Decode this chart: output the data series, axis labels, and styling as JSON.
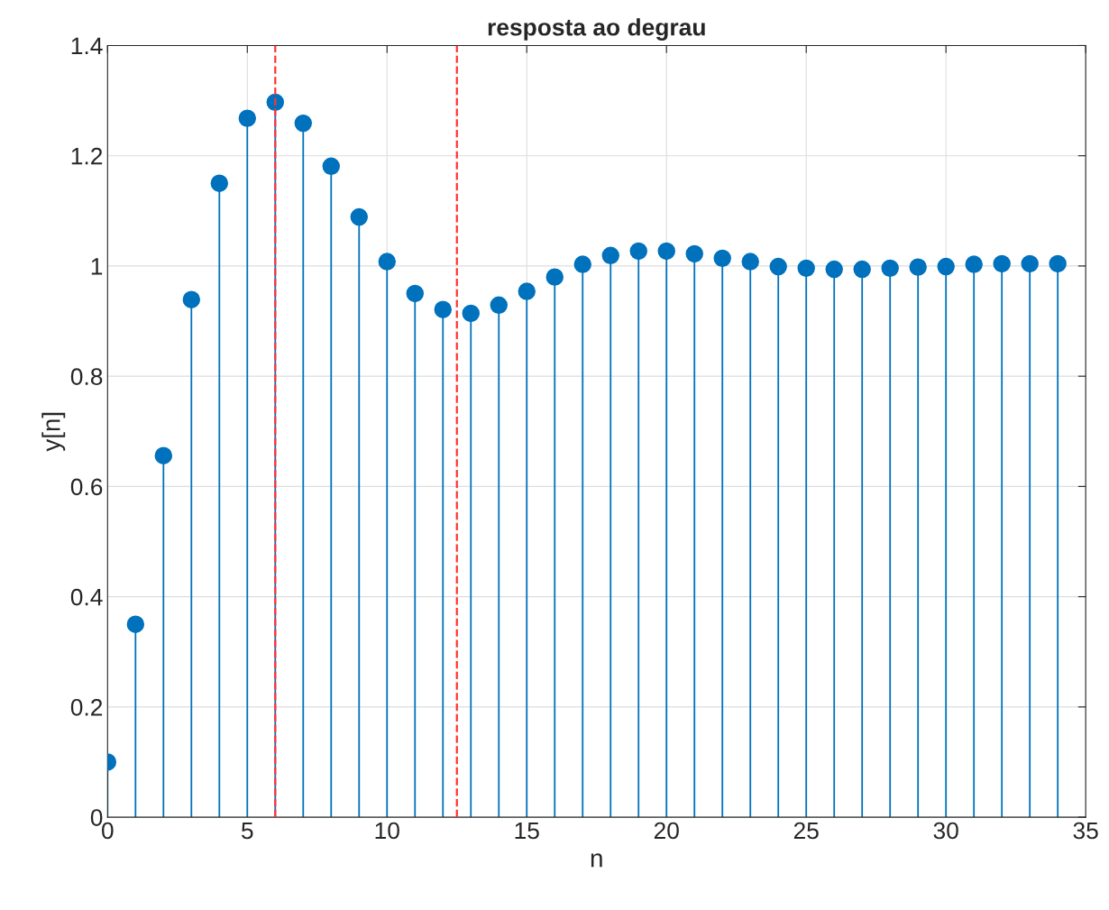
{
  "chart_data": {
    "type": "lollipop",
    "title": "resposta ao degrau",
    "xlabel": "n",
    "ylabel": "y[n]",
    "x": [
      0,
      1,
      2,
      3,
      4,
      5,
      6,
      7,
      8,
      9,
      10,
      11,
      12,
      13,
      14,
      15,
      16,
      17,
      18,
      19,
      20,
      21,
      22,
      23,
      24,
      25,
      26,
      27,
      28,
      29,
      30,
      31,
      32,
      33,
      34
    ],
    "series": [
      {
        "color": "#0072bd",
        "values": [
          0.1,
          0.35,
          0.656,
          0.939,
          1.15,
          1.268,
          1.297,
          1.259,
          1.181,
          1.089,
          1.008,
          0.95,
          0.921,
          0.914,
          0.929,
          0.954,
          0.98,
          1.003,
          1.019,
          1.027,
          1.027,
          1.022,
          1.014,
          1.008,
          0.999,
          0.996,
          0.994,
          0.994,
          0.996,
          0.998,
          0.999,
          1.003,
          1.004,
          1.004,
          1.004
        ]
      }
    ],
    "xlim": [
      0,
      35
    ],
    "xticks": [
      0,
      5,
      10,
      15,
      20,
      25,
      30,
      35
    ],
    "ylim": [
      0,
      1.4
    ],
    "yticks": [
      0,
      0.2,
      0.4,
      0.6,
      0.8,
      1,
      1.2,
      1.4
    ],
    "ref_lines": [
      {
        "axis": "x",
        "value": 6,
        "color": "#ff3333",
        "line_style": "dashed"
      },
      {
        "axis": "x",
        "value": 12.5,
        "color": "#ff3333",
        "line_style": "dashed"
      }
    ],
    "grid": true,
    "marker": "circle"
  }
}
